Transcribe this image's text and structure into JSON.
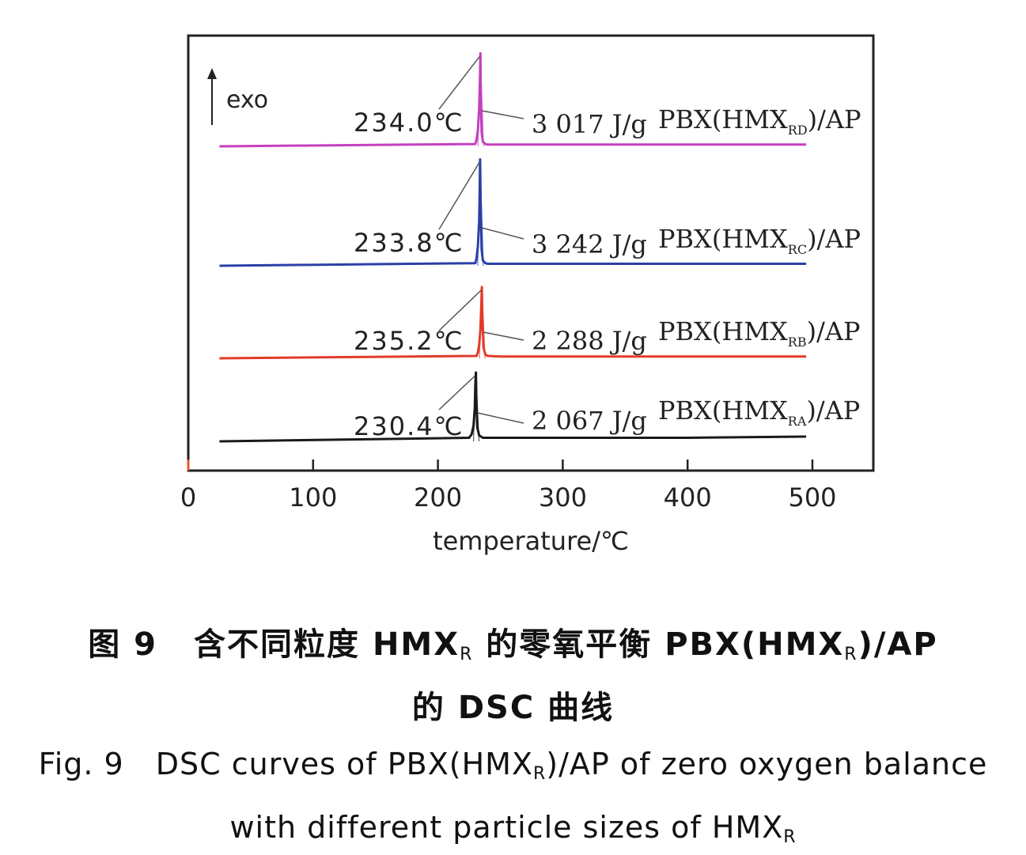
{
  "chart_data": {
    "type": "line",
    "title": "",
    "xlabel": "temperature/℃",
    "ylabel": "",
    "xlim": [
      0,
      550
    ],
    "xticks": [
      0,
      100,
      200,
      300,
      400,
      500
    ],
    "xtick_labels": [
      "0",
      "100",
      "200",
      "300",
      "400",
      "500"
    ],
    "y_axis_annotation": "exo",
    "series": [
      {
        "name": "PBX(HMX",
        "subscript": "RD",
        "suffix": ")/AP",
        "color": "#c63fbf",
        "peak_label": "234.0℃",
        "peak_temp": 234.0,
        "heat_label": "3 017 J/g",
        "x": [
          25,
          230,
          231,
          232,
          233,
          233.7,
          234.0,
          234.3,
          235,
          236,
          238,
          240,
          250,
          300,
          400,
          495
        ],
        "y": [
          0,
          0.2,
          0.6,
          1.4,
          3.2,
          6.0,
          8.0,
          4.5,
          1.2,
          0.4,
          0.2,
          0.15,
          0.15,
          0.15,
          0.15,
          0.15
        ]
      },
      {
        "name": "PBX(HMX",
        "subscript": "RC",
        "suffix": ")/AP",
        "color": "#2b3fa8",
        "peak_label": "233.8℃",
        "peak_temp": 233.8,
        "heat_label": "3 242 J/g",
        "x": [
          25,
          230,
          231,
          232,
          233,
          233.5,
          233.8,
          234.2,
          235,
          236,
          238,
          240,
          250,
          300,
          400,
          495
        ],
        "y": [
          0,
          0.2,
          0.6,
          1.5,
          3.4,
          6.2,
          8.2,
          4.8,
          1.3,
          0.4,
          0.2,
          0.15,
          0.15,
          0.15,
          0.15,
          0.15
        ]
      },
      {
        "name": "PBX(HMX",
        "subscript": "RB",
        "suffix": ")/AP",
        "color": "#e23b2a",
        "peak_label": "235.2℃",
        "peak_temp": 235.2,
        "heat_label": "2 288 J/g",
        "x": [
          25,
          231,
          232,
          233,
          234,
          234.8,
          235.2,
          235.6,
          236.5,
          238,
          240,
          250,
          300,
          400,
          495
        ],
        "y": [
          0,
          0.2,
          0.5,
          1.1,
          2.4,
          4.6,
          6.0,
          3.4,
          0.9,
          0.3,
          0.2,
          0.15,
          0.15,
          0.15,
          0.15
        ]
      },
      {
        "name": "PBX(HMX",
        "subscript": "RA",
        "suffix": ")/AP",
        "color": "#1a1a1a",
        "peak_label": "230.4℃",
        "peak_temp": 230.4,
        "heat_label": "2 067 J/g",
        "x": [
          25,
          225,
          227,
          228.5,
          229.5,
          230.0,
          230.4,
          230.8,
          231.5,
          233,
          236,
          240,
          250,
          300,
          400,
          495
        ],
        "y": [
          0,
          0.3,
          0.6,
          1.3,
          2.8,
          4.8,
          5.8,
          3.5,
          1.2,
          0.5,
          0.3,
          0.3,
          0.3,
          0.3,
          0.3,
          0.4
        ]
      }
    ]
  },
  "caption": {
    "zh_line1_part1": "图 9",
    "zh_line1_part2": "含不同粒度 HMX",
    "zh_line1_sub1": "R",
    "zh_line1_part3": " 的零氧平衡 PBX(HMX",
    "zh_line1_sub2": "R",
    "zh_line1_part4": ")/AP",
    "zh_line2": "的 DSC 曲线",
    "en_line1_part1": "Fig. 9",
    "en_line1_part2": "DSC curves of PBX(HMX",
    "en_line1_sub1": "R",
    "en_line1_part3": ")/AP of zero oxygen balance",
    "en_line2_part1": "with different particle sizes of HMX",
    "en_line2_sub1": "R"
  }
}
